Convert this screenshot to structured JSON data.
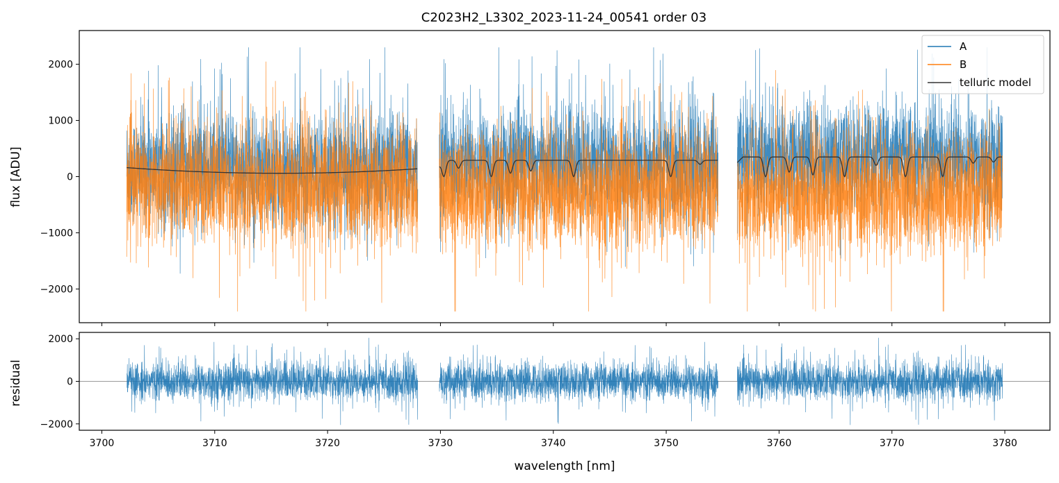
{
  "chart_data": [
    {
      "type": "line",
      "panel": "spectrum",
      "title": "C2023H2_L3302_2023-11-24_00541  order 03",
      "xlabel": "",
      "ylabel": "flux [ADU]",
      "xlim": [
        3698,
        3784
      ],
      "ylim": [
        -2600,
        2600
      ],
      "yticks": [
        -2000,
        -1000,
        0,
        1000,
        2000
      ],
      "ytick_labels": [
        "−2000",
        "−1000",
        "0",
        "1000",
        "2000"
      ],
      "grid": false,
      "legend_position": "top-right",
      "segments": [
        {
          "x_range": [
            3702.2,
            3728.0
          ]
        },
        {
          "x_range": [
            3729.9,
            3754.6
          ]
        },
        {
          "x_range": [
            3756.3,
            3779.8
          ]
        }
      ],
      "series": [
        {
          "name": "A",
          "color": "#1f77b4",
          "kind": "noise",
          "mean": 0,
          "std": 480,
          "segment_means": [
            150,
            250,
            350
          ],
          "peak_max": 2300,
          "peak_min": -1900
        },
        {
          "name": "B",
          "color": "#ff7f0e",
          "kind": "noise",
          "mean": 0,
          "std": 520,
          "segment_means": [
            -150,
            -250,
            -300
          ],
          "peak_max": 2200,
          "peak_min": -2400
        },
        {
          "name": "telluric model",
          "color": "#333333",
          "kind": "model",
          "baseline": [
            {
              "x": 3702.2,
              "y": 160
            },
            {
              "x": 3715.0,
              "y": 60
            },
            {
              "x": 3728.0,
              "y": 140
            }
          ],
          "segment_levels": [
            null,
            290,
            350
          ],
          "absorption_lines": [
            {
              "x": 3730.3,
              "y": 0
            },
            {
              "x": 3731.6,
              "y": 150
            },
            {
              "x": 3734.5,
              "y": 0
            },
            {
              "x": 3736.2,
              "y": 60
            },
            {
              "x": 3738.0,
              "y": 100
            },
            {
              "x": 3741.8,
              "y": 0
            },
            {
              "x": 3750.4,
              "y": 0
            },
            {
              "x": 3753.0,
              "y": 220
            },
            {
              "x": 3758.8,
              "y": 0
            },
            {
              "x": 3760.9,
              "y": 80
            },
            {
              "x": 3763.0,
              "y": 30
            },
            {
              "x": 3765.8,
              "y": 0
            },
            {
              "x": 3768.6,
              "y": 200
            },
            {
              "x": 3771.2,
              "y": 0
            },
            {
              "x": 3774.5,
              "y": 0
            },
            {
              "x": 3777.2,
              "y": 240
            },
            {
              "x": 3779.0,
              "y": 260
            }
          ]
        }
      ]
    },
    {
      "type": "line",
      "panel": "residual",
      "xlabel": "wavelength [nm]",
      "ylabel": "residual",
      "xlim": [
        3698,
        3784
      ],
      "ylim": [
        -2300,
        2300
      ],
      "xticks": [
        3700,
        3710,
        3720,
        3730,
        3740,
        3750,
        3760,
        3770,
        3780
      ],
      "xtick_labels": [
        "3700",
        "3710",
        "3720",
        "3730",
        "3740",
        "3750",
        "3760",
        "3770",
        "3780"
      ],
      "yticks": [
        -2000,
        0,
        2000
      ],
      "ytick_labels": [
        "−2000",
        "0",
        "2000"
      ],
      "zero_line": 0,
      "series": [
        {
          "color": "#1f77b4",
          "kind": "noise",
          "mean": 0,
          "std": 450,
          "peak_max": 2050,
          "peak_min": -2100
        }
      ]
    }
  ],
  "legend": {
    "items": [
      {
        "label": "A",
        "color": "#1f77b4"
      },
      {
        "label": "B",
        "color": "#ff7f0e"
      },
      {
        "label": "telluric model",
        "color": "#333333"
      }
    ]
  }
}
